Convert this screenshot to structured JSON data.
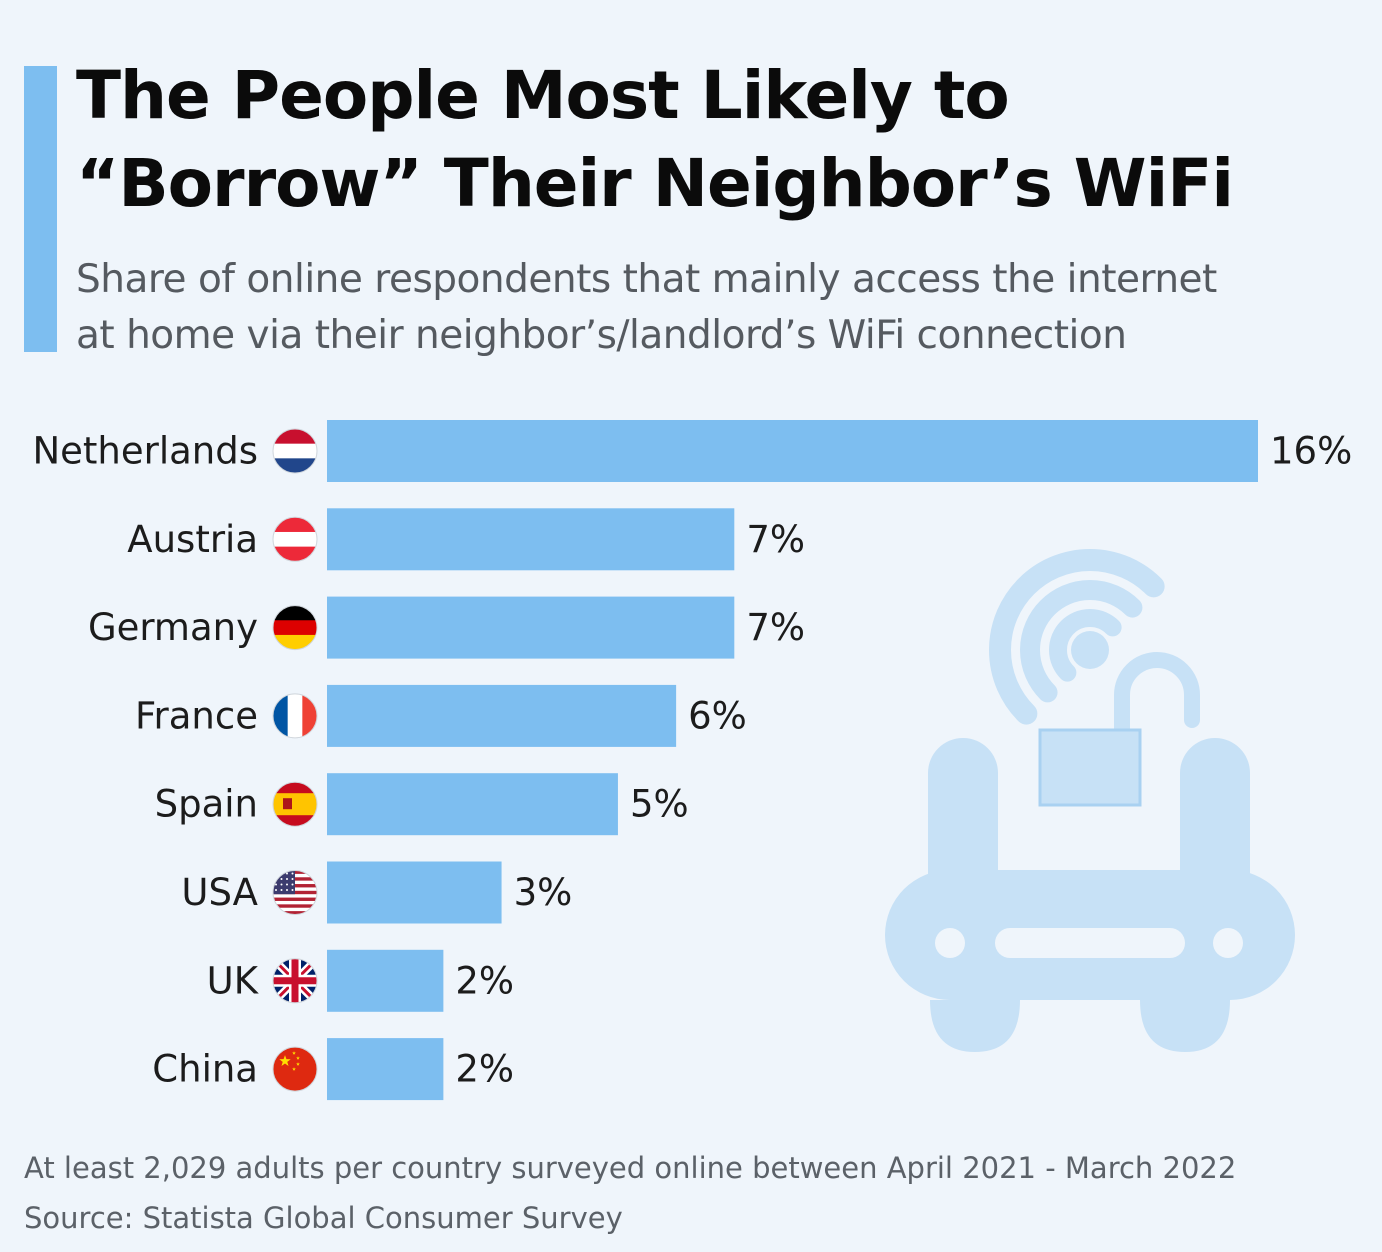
{
  "header": {
    "title_lines": [
      "The People Most Likely to",
      "“Borrow” Their Neighbor’s WiFi"
    ],
    "subtitle_lines": [
      "Share of online respondents that mainly access the internet",
      "at home via their neighbor’s/landlord’s WiFi connection"
    ]
  },
  "colors": {
    "bar": "#7dbef0",
    "accent": "#7dbef0",
    "illustration": "#c7e1f6",
    "text": "#1c1c1c"
  },
  "chart_data": {
    "type": "bar",
    "orientation": "horizontal",
    "categories": [
      "Netherlands",
      "Austria",
      "Germany",
      "France",
      "Spain",
      "USA",
      "UK",
      "China"
    ],
    "values": [
      16,
      7,
      7,
      6,
      5,
      3,
      2,
      2
    ],
    "value_labels": [
      "16%",
      "7%",
      "7%",
      "6%",
      "5%",
      "3%",
      "2%",
      "2%"
    ],
    "flags": [
      "flag-netherlands-icon",
      "flag-austria-icon",
      "flag-germany-icon",
      "flag-france-icon",
      "flag-spain-icon",
      "flag-usa-icon",
      "flag-uk-icon",
      "flag-china-icon"
    ],
    "unit": "%",
    "xlim": [
      0,
      16
    ],
    "grid": false,
    "legend": "none",
    "illustration": "wifi-router-with-open-padlock-icon"
  },
  "footer": {
    "note": "At least 2,029 adults per country surveyed online between April 2021 - March 2022",
    "source": "Source: Statista Global Consumer Survey"
  }
}
